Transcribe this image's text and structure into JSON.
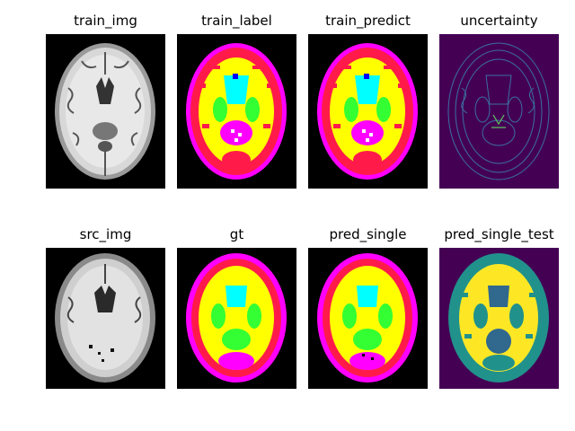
{
  "figure": {
    "panels": [
      {
        "title": "train_img",
        "style": "mri"
      },
      {
        "title": "train_label",
        "style": "seg"
      },
      {
        "title": "train_predict",
        "style": "seg"
      },
      {
        "title": "uncertainty",
        "style": "unc"
      },
      {
        "title": "src_img",
        "style": "mri"
      },
      {
        "title": "gt",
        "style": "seg"
      },
      {
        "title": "pred_single",
        "style": "seg"
      },
      {
        "title": "pred_single_test",
        "style": "viridis"
      }
    ]
  },
  "colors": {
    "seg_csf": "#ff00ff",
    "seg_gm": "#ff1a4a",
    "seg_wm": "#ffff00",
    "seg_ventricle": "#00ffff",
    "seg_deep_gm": "#33ff33",
    "seg_blue": "#0000ff",
    "unc_bg": "#440154",
    "unc_line": "#3b6fa0",
    "vir_bg": "#440154",
    "vir_gm": "#21918c",
    "vir_wm": "#fde725",
    "vir_dark": "#31688e"
  }
}
